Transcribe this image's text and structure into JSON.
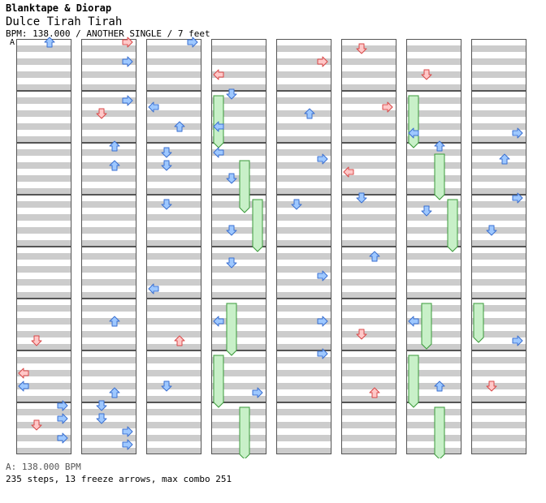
{
  "header": {
    "artist": "Blanktape & Diorap",
    "title": "Dulce Tirah Tirah",
    "info": "BPM: 138.000 / ANOTHER SINGLE / 7 feet",
    "marker": "A"
  },
  "footer": {
    "bpm_line": "A: 138.000 BPM",
    "stats": "235 steps, 13 freeze arrows, max combo 251"
  },
  "colors": {
    "red_fill": "#ffc8c8",
    "red_stroke": "#d84848",
    "blue_fill": "#9ec8ff",
    "blue_stroke": "#3a6fd0",
    "freeze_fill": "#c8f0c8",
    "freeze_stroke": "#3a9a3a",
    "stripe": "#cccccc"
  },
  "chart_data": {
    "type": "step-chart",
    "columns": 8,
    "measures_per_column": 8,
    "rows_per_measure": 8,
    "lanes": [
      "left",
      "down",
      "up",
      "right"
    ],
    "notes": [
      [
        0,
        6,
        3,
        0,
        2
      ],
      [
        1,
        0,
        0,
        3,
        4
      ],
      [
        1,
        0,
        3,
        3,
        1
      ],
      [
        2,
        0,
        0,
        3,
        1
      ],
      [
        3,
        0,
        5,
        0,
        4
      ],
      [
        4,
        0,
        3,
        3,
        4
      ],
      [
        5,
        0,
        1,
        1,
        3
      ],
      [
        6,
        0,
        5,
        1,
        3
      ],
      [
        1,
        1,
        1,
        3,
        1
      ],
      [
        1,
        1,
        3,
        1,
        4
      ],
      [
        2,
        1,
        2,
        0,
        1
      ],
      [
        2,
        1,
        5,
        2,
        1
      ],
      [
        3,
        1,
        0,
        1,
        1
      ],
      [
        3,
        1,
        5,
        0,
        1
      ],
      [
        4,
        1,
        3,
        2,
        1
      ],
      [
        5,
        1,
        2,
        3,
        4
      ],
      [
        6,
        1,
        6,
        0,
        1
      ],
      [
        7,
        1,
        6,
        3,
        1
      ],
      [
        1,
        2,
        3,
        2,
        1
      ],
      [
        1,
        2,
        0,
        2,
        1
      ],
      [
        2,
        2,
        1,
        1,
        1
      ],
      [
        2,
        2,
        3,
        1,
        1
      ],
      [
        3,
        2,
        1,
        0,
        1
      ],
      [
        3,
        2,
        5,
        1,
        1
      ],
      [
        4,
        2,
        2,
        3,
        1
      ],
      [
        5,
        2,
        4,
        0,
        4
      ],
      [
        6,
        2,
        0,
        2,
        1
      ],
      [
        7,
        2,
        2,
        2,
        1
      ],
      [
        2,
        4,
        6,
        0,
        1
      ],
      [
        3,
        4,
        2,
        1,
        1
      ],
      [
        4,
        4,
        4,
        3,
        1
      ],
      [
        5,
        4,
        1,
        2,
        1
      ],
      [
        0,
        5,
        6,
        1,
        4
      ],
      [
        1,
        5,
        3,
        2,
        1
      ],
      [
        2,
        5,
        6,
        2,
        4
      ],
      [
        3,
        5,
        3,
        0,
        1
      ],
      [
        4,
        5,
        3,
        3,
        1
      ],
      [
        5,
        5,
        5,
        1,
        4
      ],
      [
        6,
        5,
        3,
        0,
        1
      ],
      [
        7,
        5,
        6,
        3,
        1
      ],
      [
        0,
        6,
        5,
        0,
        1
      ],
      [
        1,
        6,
        6,
        2,
        1
      ],
      [
        2,
        6,
        5,
        1,
        1
      ],
      [
        3,
        6,
        6,
        3,
        1
      ],
      [
        4,
        6,
        0,
        3,
        1
      ],
      [
        5,
        6,
        6,
        2,
        4
      ],
      [
        6,
        6,
        5,
        2,
        1
      ],
      [
        7,
        6,
        5,
        1,
        4
      ],
      [
        0,
        7,
        0,
        3,
        1
      ],
      [
        0,
        7,
        2,
        3,
        1
      ],
      [
        0,
        7,
        3,
        1,
        4
      ],
      [
        0,
        7,
        5,
        3,
        1
      ],
      [
        1,
        7,
        0,
        1,
        1
      ],
      [
        1,
        7,
        2,
        1,
        1
      ],
      [
        1,
        7,
        4,
        3,
        1
      ],
      [
        1,
        7,
        6,
        3,
        1
      ],
      [
        0,
        0,
        0,
        2,
        1
      ],
      [
        2,
        3,
        1,
        1,
        1
      ],
      [
        3,
        3,
        5,
        1,
        1
      ],
      [
        4,
        3,
        1,
        1,
        1
      ],
      [
        5,
        3,
        0,
        1,
        1
      ],
      [
        6,
        3,
        2,
        1,
        1
      ],
      [
        7,
        3,
        0,
        3,
        1
      ],
      [
        7,
        3,
        5,
        1,
        1
      ]
    ],
    "freezes": [
      [
        3,
        1,
        0,
        0,
        8
      ],
      [
        3,
        2,
        2,
        2,
        8
      ],
      [
        3,
        3,
        0,
        3,
        8
      ],
      [
        3,
        6,
        0,
        0,
        8
      ],
      [
        3,
        7,
        0,
        2,
        8
      ],
      [
        6,
        1,
        0,
        0,
        8
      ],
      [
        6,
        2,
        1,
        2,
        7
      ],
      [
        6,
        3,
        0,
        3,
        8
      ],
      [
        6,
        5,
        0,
        1,
        7
      ],
      [
        6,
        6,
        0,
        0,
        8
      ],
      [
        6,
        7,
        0,
        2,
        8
      ],
      [
        7,
        5,
        0,
        0,
        6
      ],
      [
        3,
        5,
        0,
        1,
        8
      ]
    ]
  }
}
